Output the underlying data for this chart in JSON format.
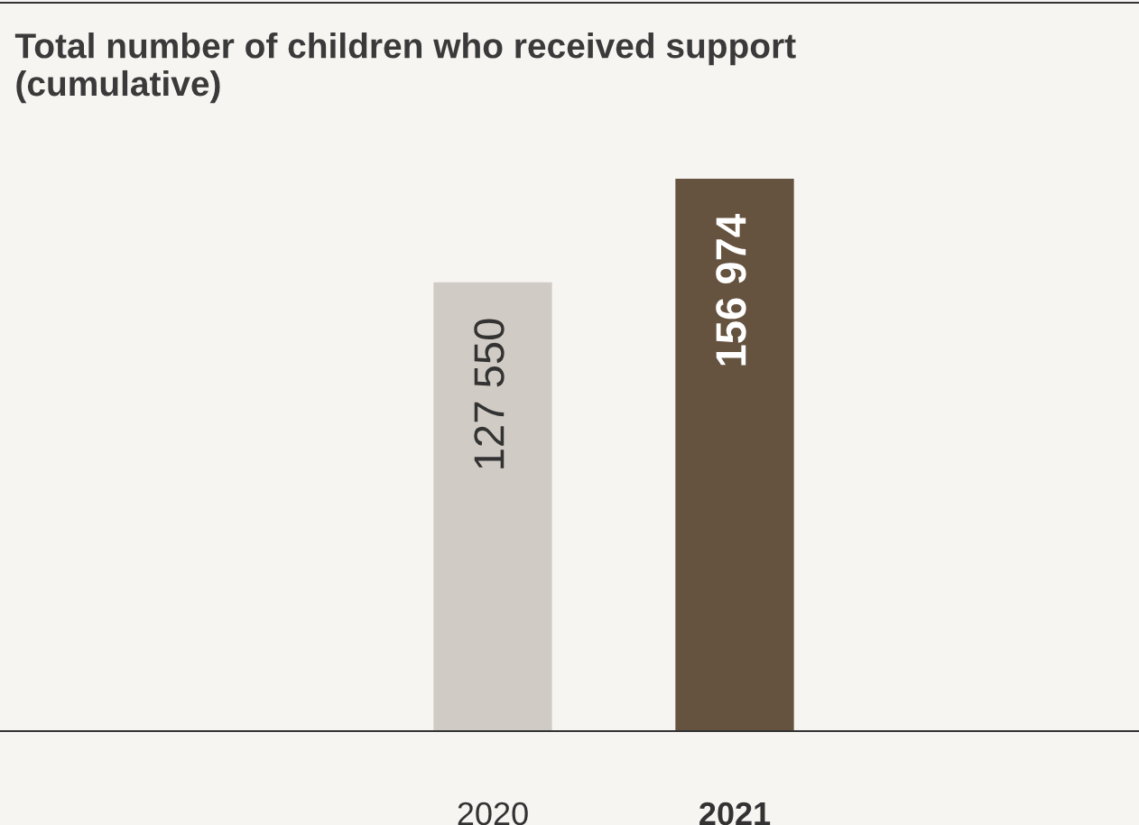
{
  "chart_data": {
    "type": "bar",
    "title": "Total number of children who received support\n(cumulative)",
    "categories": [
      "2020",
      "2021"
    ],
    "values": [
      127550,
      156974
    ],
    "value_labels": [
      "127 550",
      "156 974"
    ],
    "colors": [
      "#d0cbc4",
      "#65533f"
    ]
  }
}
